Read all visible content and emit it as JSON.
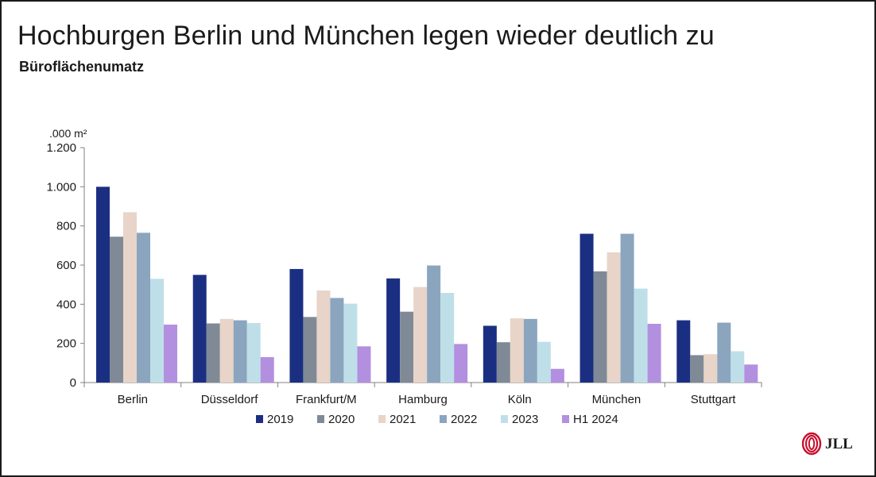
{
  "slide": {
    "title": "Hochburgen Berlin und München legen wieder deutlich zu",
    "subtitle": "Büroflächenumatz"
  },
  "logo": {
    "text": "JLL",
    "icon": "jll-flame-logo",
    "color": "#c8102e"
  },
  "chart_data": {
    "type": "bar",
    "title": "",
    "xlabel": "",
    "ylabel": ".000 m²",
    "ylim": [
      0,
      1200
    ],
    "yticks": [
      0,
      200,
      400,
      600,
      800,
      1000,
      1200
    ],
    "ytick_labels": [
      "0",
      "200",
      "400",
      "600",
      "800",
      "1.000",
      "1.200"
    ],
    "grid": false,
    "legend_position": "bottom",
    "categories": [
      "Berlin",
      "Düsseldorf",
      "Frankfurt/M",
      "Hamburg",
      "Köln",
      "München",
      "Stuttgart"
    ],
    "series": [
      {
        "name": "2019",
        "color": "#1b2f82",
        "values": [
          1000,
          550,
          580,
          532,
          290,
          760,
          318
        ]
      },
      {
        "name": "2020",
        "color": "#7f8a96",
        "values": [
          745,
          302,
          335,
          362,
          206,
          568,
          140
        ]
      },
      {
        "name": "2021",
        "color": "#e8d4c8",
        "values": [
          870,
          325,
          470,
          488,
          328,
          665,
          145
        ]
      },
      {
        "name": "2022",
        "color": "#8ba5be",
        "values": [
          765,
          318,
          432,
          598,
          325,
          760,
          306
        ]
      },
      {
        "name": "2023",
        "color": "#bfdfe8",
        "values": [
          530,
          304,
          403,
          458,
          208,
          480,
          160
        ]
      },
      {
        "name": "H1 2024",
        "color": "#b38fe0",
        "values": [
          296,
          130,
          185,
          197,
          70,
          300,
          92
        ]
      }
    ]
  }
}
